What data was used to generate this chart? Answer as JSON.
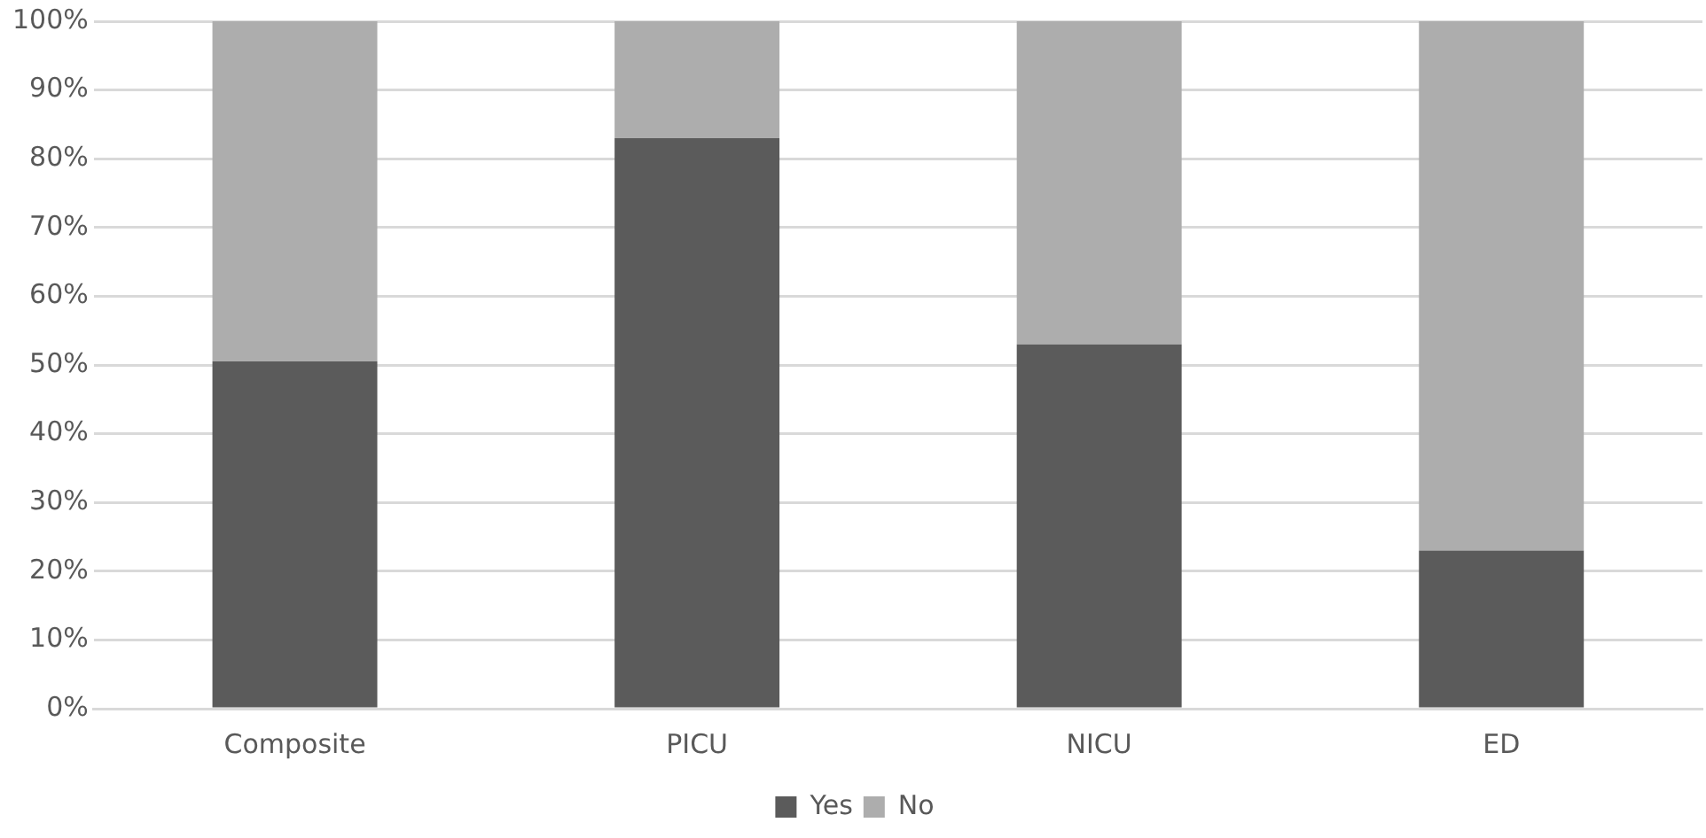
{
  "chart_data": {
    "type": "bar",
    "stacked": true,
    "categories": [
      "Composite",
      "PICU",
      "NICU",
      "ED"
    ],
    "series": [
      {
        "name": "Yes",
        "color": "#5b5b5b",
        "values": [
          50.5,
          83,
          53,
          23
        ]
      },
      {
        "name": "No",
        "color": "#adadad",
        "values": [
          49.5,
          17,
          47,
          77
        ]
      }
    ],
    "ylim": [
      0,
      100
    ],
    "yticks": [
      {
        "value": 0,
        "label": "0%"
      },
      {
        "value": 10,
        "label": "10%"
      },
      {
        "value": 20,
        "label": "20%"
      },
      {
        "value": 30,
        "label": "30%"
      },
      {
        "value": 40,
        "label": "40%"
      },
      {
        "value": 50,
        "label": "50%"
      },
      {
        "value": 60,
        "label": "60%"
      },
      {
        "value": 70,
        "label": "70%"
      },
      {
        "value": 80,
        "label": "80%"
      },
      {
        "value": 90,
        "label": "90%"
      },
      {
        "value": 100,
        "label": "100%"
      }
    ],
    "grid": "y",
    "legend": "bottom"
  }
}
